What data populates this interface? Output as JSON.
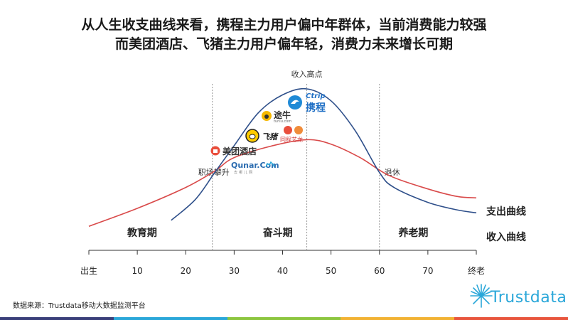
{
  "title_lines": [
    "从人生收支曲线来看，携程主力用户偏中年群体，当前消费能力较强",
    "而美团酒店、飞猪主力用户偏年轻，消费力未来增长可期"
  ],
  "source": "数据来源：Trustdata移动大数据监测平台",
  "brand": "Trustdata",
  "colors": {
    "expense": "#d94a4a",
    "income": "#2e4f8a",
    "axis": "#333333",
    "guide": "#999999",
    "footer": [
      "#3a3f7a",
      "#2aa7d9",
      "#8cc63f",
      "#f2b233",
      "#e8553d"
    ]
  },
  "logos": [
    {
      "name": "携程",
      "sub": "Ctrip",
      "color": "#1f6fc5"
    },
    {
      "name": "途牛",
      "sub": "tuniu.com",
      "color": "#333333"
    },
    {
      "name": "飞猪",
      "sub": "",
      "color": "#222222"
    },
    {
      "name": "同程艺龙",
      "sub": "",
      "color": "#d23c3c"
    },
    {
      "name": "美团酒店",
      "sub": "",
      "color": "#333333"
    },
    {
      "name": "Qunar.Com",
      "sub": "去哪儿网",
      "color": "#2b6cb0"
    }
  ],
  "chart_data": {
    "type": "line",
    "x_ticks": [
      {
        "x": 0,
        "label": "出生"
      },
      {
        "x": 10,
        "label": "10"
      },
      {
        "x": 20,
        "label": "20"
      },
      {
        "x": 30,
        "label": "30"
      },
      {
        "x": 40,
        "label": "40"
      },
      {
        "x": 50,
        "label": "50"
      },
      {
        "x": 60,
        "label": "60"
      },
      {
        "x": 70,
        "label": "70"
      },
      {
        "x": 80,
        "label": "终老"
      }
    ],
    "xlim": [
      0,
      80
    ],
    "ylim": [
      0,
      100
    ],
    "series": [
      {
        "name": "支出曲线",
        "color": "#d94a4a",
        "points": [
          [
            0,
            8
          ],
          [
            10,
            20
          ],
          [
            20,
            34
          ],
          [
            26,
            45
          ],
          [
            30,
            54
          ],
          [
            38,
            62
          ],
          [
            45,
            66
          ],
          [
            50,
            63
          ],
          [
            56,
            54
          ],
          [
            62,
            42
          ],
          [
            70,
            33
          ],
          [
            76,
            28
          ],
          [
            80,
            27
          ]
        ]
      },
      {
        "name": "收入曲线",
        "color": "#2e4f8a",
        "points": [
          [
            17,
            12
          ],
          [
            22,
            26
          ],
          [
            26,
            44
          ],
          [
            30,
            62
          ],
          [
            35,
            84
          ],
          [
            40,
            96
          ],
          [
            45,
            100
          ],
          [
            50,
            92
          ],
          [
            55,
            72
          ],
          [
            60,
            44
          ],
          [
            63,
            34
          ],
          [
            70,
            24
          ],
          [
            76,
            19
          ],
          [
            80,
            17
          ]
        ]
      }
    ],
    "stages": [
      {
        "label": "教育期",
        "x": 11
      },
      {
        "label": "奋斗期",
        "x": 39
      },
      {
        "label": "养老期",
        "x": 67
      }
    ],
    "markers": [
      {
        "label": "职场攀升",
        "x": 25.5
      },
      {
        "label": "收入高点",
        "x": 45
      },
      {
        "label": "退休",
        "x": 60
      }
    ]
  }
}
